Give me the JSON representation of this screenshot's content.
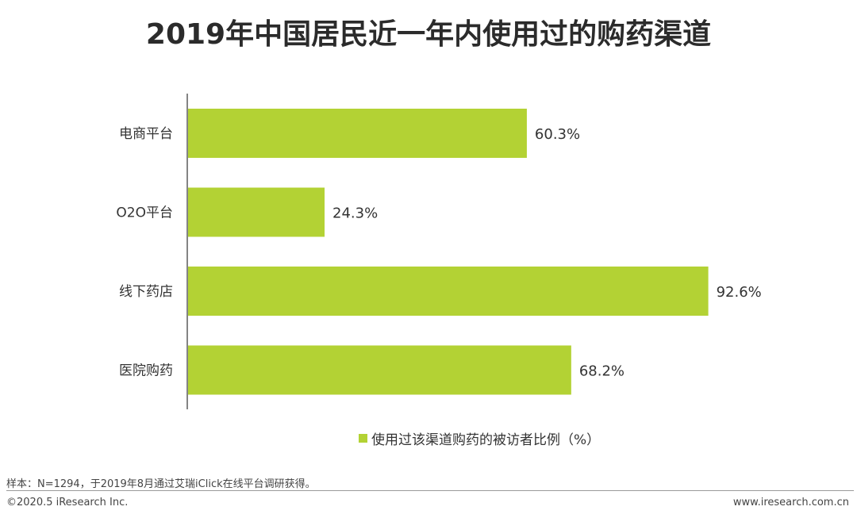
{
  "title": "2019年中国居民近一年内使用过的购药渠道",
  "chart_data": {
    "type": "bar",
    "orientation": "horizontal",
    "categories": [
      "电商平台",
      "O2O平台",
      "线下药店",
      "医院购药"
    ],
    "series": [
      {
        "name": "使用过该渠道购药的被访者比例（%）",
        "values": [
          60.3,
          24.3,
          92.6,
          68.2
        ],
        "labels": [
          "60.3%",
          "24.3%",
          "92.6%",
          "68.2%"
        ]
      }
    ],
    "xlim": [
      0,
      100
    ],
    "grid": false,
    "legend_position": "bottom",
    "bar_color": "#b3d234"
  },
  "legend": {
    "label": "使用过该渠道购药的被访者比例（%）"
  },
  "footnote": "样本：N=1294，于2019年8月通过艾瑞iClick在线平台调研获得。",
  "copyright": "©2020.5 iResearch Inc.",
  "website": "www.iresearch.com.cn"
}
